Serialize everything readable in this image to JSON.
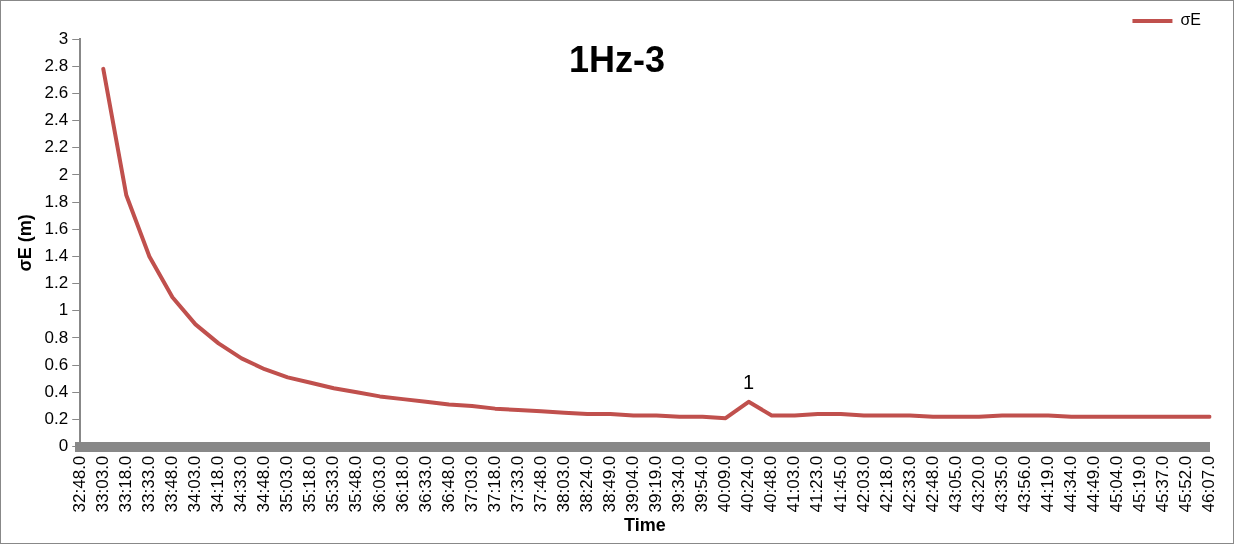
{
  "chart_data": {
    "type": "line",
    "title": "1Hz-3",
    "xlabel": "Time",
    "ylabel": "σE (m)",
    "categories": [
      "32:48.0",
      "33:03.0",
      "33:18.0",
      "33:33.0",
      "33:48.0",
      "34:03.0",
      "34:18.0",
      "34:33.0",
      "34:48.0",
      "35:03.0",
      "35:18.0",
      "35:33.0",
      "35:48.0",
      "36:03.0",
      "36:18.0",
      "36:33.0",
      "36:48.0",
      "37:03.0",
      "37:18.0",
      "37:33.0",
      "37:48.0",
      "38:03.0",
      "38:24.0",
      "38:49.0",
      "39:04.0",
      "39:19.0",
      "39:34.0",
      "39:54.0",
      "40:09.0",
      "40:24.0",
      "40:48.0",
      "41:03.0",
      "41:23.0",
      "41:45.0",
      "42:03.0",
      "42:18.0",
      "42:33.0",
      "42:48.0",
      "43:05.0",
      "43:20.0",
      "43:35.0",
      "43:56.0",
      "44:19.0",
      "44:34.0",
      "44:49.0",
      "45:04.0",
      "45:19.0",
      "45:37.0",
      "45:52.0",
      "46:07.0"
    ],
    "series": [
      {
        "name": "σE",
        "color": "#c0504d",
        "values": [
          null,
          2.78,
          1.85,
          1.4,
          1.1,
          0.9,
          0.76,
          0.65,
          0.57,
          0.51,
          0.47,
          0.43,
          0.4,
          0.37,
          0.35,
          0.33,
          0.31,
          0.3,
          0.28,
          0.27,
          0.26,
          0.25,
          0.24,
          0.24,
          0.23,
          0.23,
          0.22,
          0.22,
          0.21,
          0.33,
          0.23,
          0.23,
          0.24,
          0.24,
          0.23,
          0.23,
          0.23,
          0.22,
          0.22,
          0.22,
          0.23,
          0.23,
          0.23,
          0.22,
          0.22,
          0.22,
          0.22,
          0.22,
          0.22,
          0.22
        ]
      }
    ],
    "ylim": [
      0,
      3
    ],
    "yticks": [
      0,
      0.2,
      0.4,
      0.6,
      0.8,
      1,
      1.2,
      1.4,
      1.6,
      1.8,
      2,
      2.2,
      2.4,
      2.6,
      2.8,
      3
    ],
    "annotations": [
      {
        "text": "1",
        "x": "40:24.0",
        "y": 0.33
      }
    ],
    "grid": false,
    "legend": "top right",
    "marker": "none",
    "line_style": "solid"
  }
}
